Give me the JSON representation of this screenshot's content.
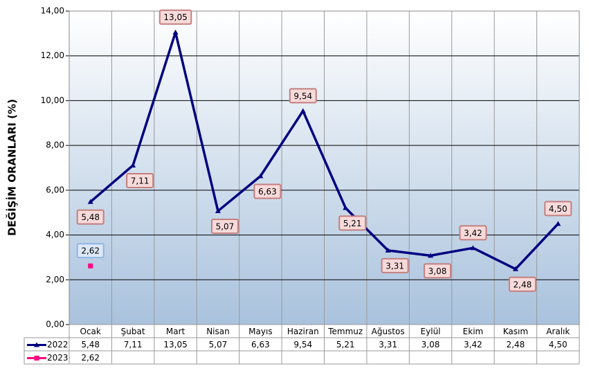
{
  "chart_data": {
    "type": "line",
    "y_label": "DEĞİŞİM ORANLARI (%)",
    "categories": [
      "Ocak",
      "Şubat",
      "Mart",
      "Nisan",
      "Mayıs",
      "Haziran",
      "Temmuz",
      "Ağustos",
      "Eylül",
      "Ekim",
      "Kasım",
      "Aralık"
    ],
    "series": [
      {
        "name": "2022",
        "color": "#000080",
        "marker": "triangle",
        "values": [
          5.48,
          7.11,
          13.05,
          5.07,
          6.63,
          9.54,
          5.21,
          3.31,
          3.08,
          3.42,
          2.48,
          4.5
        ],
        "value_labels": [
          "5,48",
          "7,11",
          "13,05",
          "5,07",
          "6,63",
          "9,54",
          "5,21",
          "3,31",
          "3,08",
          "3,42",
          "2,48",
          "4,50"
        ]
      },
      {
        "name": "2023",
        "color": "#ff0080",
        "marker": "square",
        "values": [
          2.62,
          null,
          null,
          null,
          null,
          null,
          null,
          null,
          null,
          null,
          null,
          null
        ],
        "value_labels": [
          "2,62",
          null,
          null,
          null,
          null,
          null,
          null,
          null,
          null,
          null,
          null,
          null
        ]
      }
    ],
    "ylim": [
      0,
      14
    ],
    "yticks": [
      {
        "value": 0,
        "label": "0,00"
      },
      {
        "value": 2,
        "label": "2,00"
      },
      {
        "value": 4,
        "label": "4,00"
      },
      {
        "value": 6,
        "label": "6,00"
      },
      {
        "value": 8,
        "label": "8,00"
      },
      {
        "value": 10,
        "label": "10,00"
      },
      {
        "value": 12,
        "label": "12,00"
      },
      {
        "value": 14,
        "label": "14,00"
      }
    ],
    "grid": true,
    "legend": "data-table"
  }
}
